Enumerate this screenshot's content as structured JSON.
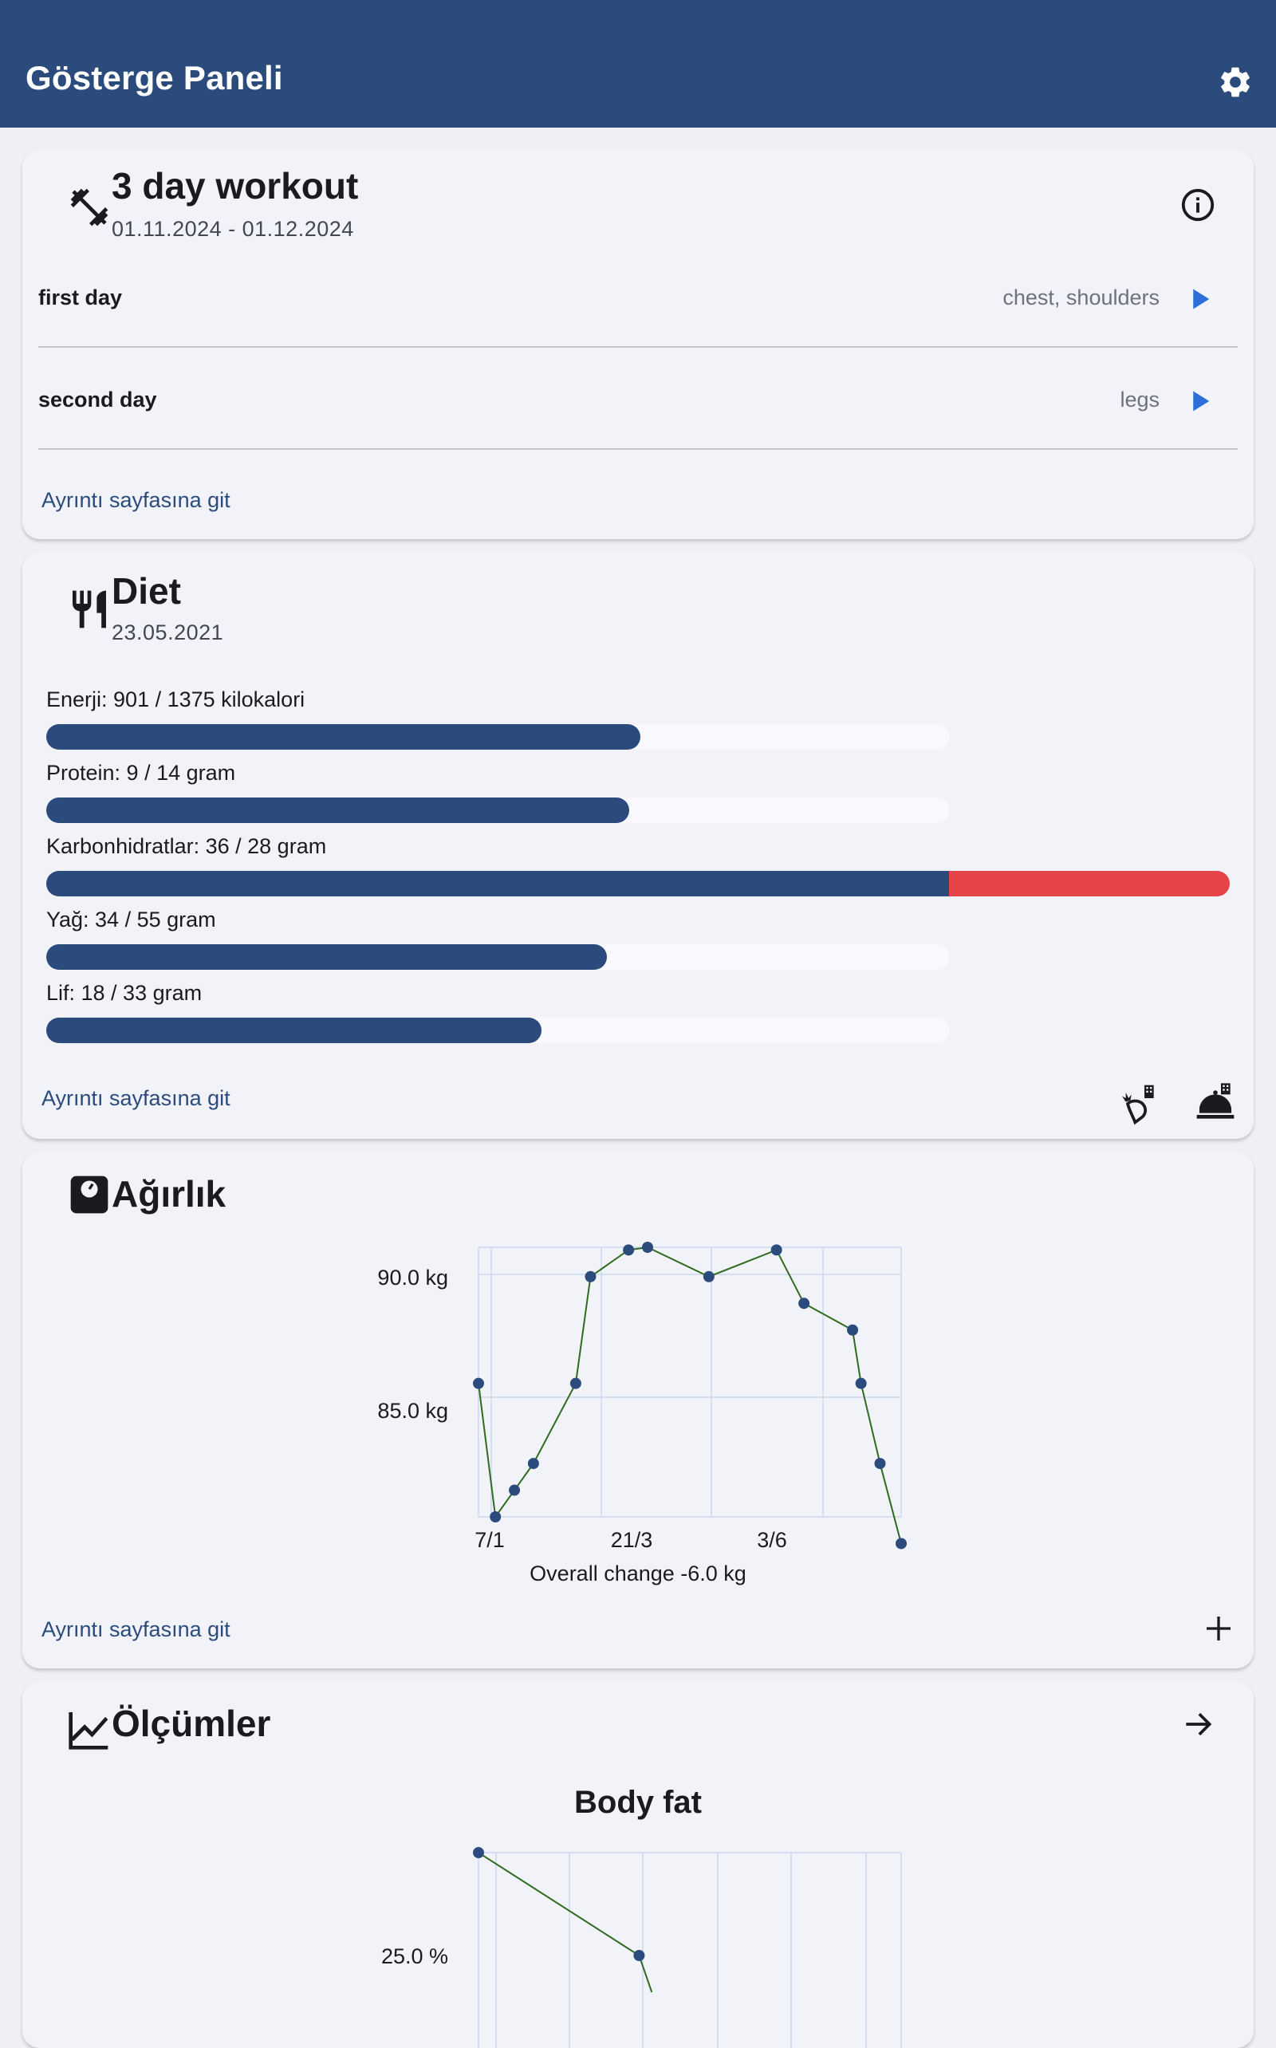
{
  "appbar": {
    "title": "Gösterge Paneli",
    "settings_icon": "gear-icon"
  },
  "workout": {
    "title": "3 day workout",
    "dates": "01.11.2024 - 01.12.2024",
    "days": [
      {
        "name": "first day",
        "muscles": "chest, shoulders"
      },
      {
        "name": "second day",
        "muscles": "legs"
      }
    ],
    "link": "Ayrıntı sayfasına git",
    "accent": "#2b6fd6"
  },
  "diet": {
    "title": "Diet",
    "date": "23.05.2021",
    "nutrients": [
      {
        "label": "Enerji: 901 / 1375 kilokalori",
        "value": 901,
        "goal": 1375
      },
      {
        "label": "Protein: 9 / 14 gram",
        "value": 9,
        "goal": 14
      },
      {
        "label": "Karbonhidratlar: 36 / 28 gram",
        "value": 36,
        "goal": 28
      },
      {
        "label": "Yağ: 34 / 55 gram",
        "value": 34,
        "goal": 55
      },
      {
        "label": "Lif: 18 / 33 gram",
        "value": 18,
        "goal": 33
      }
    ],
    "link": "Ayrıntı sayfasına git",
    "colors": {
      "fill": "#2b4b7c",
      "over": "#e54548",
      "track": "#f9f9fd"
    }
  },
  "weight": {
    "title": "Ağırlık",
    "overall": "Overall change -6.0 kg",
    "link": "Ayrıntı sayfasına git"
  },
  "measurements": {
    "title": "Ölçümler"
  },
  "chart_data": [
    {
      "type": "line",
      "name": "weight",
      "y_ticks": [
        "90.0 kg",
        "85.0 kg"
      ],
      "y_tick_values": [
        90.0,
        85.0
      ],
      "x_ticks": [
        "7/1",
        "21/3",
        "3/6"
      ],
      "ylim": [
        81.0,
        91.1
      ],
      "points": [
        [
          0.0,
          86.0
        ],
        [
          0.04,
          81.0
        ],
        [
          0.085,
          82.0
        ],
        [
          0.13,
          83.0
        ],
        [
          0.23,
          86.0
        ],
        [
          0.265,
          90.0
        ],
        [
          0.355,
          91.0
        ],
        [
          0.4,
          91.1
        ],
        [
          0.545,
          90.0
        ],
        [
          0.705,
          91.0
        ],
        [
          0.77,
          89.0
        ],
        [
          0.885,
          88.0
        ],
        [
          0.905,
          86.0
        ],
        [
          0.95,
          83.0
        ],
        [
          1.0,
          80.0
        ]
      ],
      "line_color": "#2f6b1f",
      "point_color": "#2b4b7c"
    },
    {
      "type": "line",
      "name": "body-fat",
      "title": "Body fat",
      "y_ticks": [
        "25.0 %"
      ],
      "points": [
        [
          0.0,
          29.2
        ],
        [
          0.38,
          25.0
        ],
        [
          0.41,
          23.5
        ]
      ]
    }
  ]
}
